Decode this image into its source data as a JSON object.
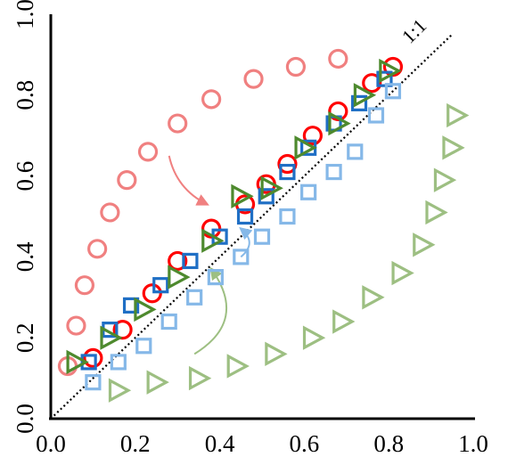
{
  "chart_data": {
    "type": "scatter",
    "title": "",
    "xlabel": "",
    "ylabel": "",
    "xlim": [
      0,
      1.0
    ],
    "ylim": [
      0,
      1.0
    ],
    "xticks": [
      "0.0",
      "0.2",
      "0.4",
      "0.6",
      "0.8",
      "1.0"
    ],
    "yticks": [
      "0.0",
      "0.2",
      "0.4",
      "0.6",
      "0.8",
      "1.0"
    ],
    "reference_line": {
      "label": "1:1",
      "style": "dotted",
      "color": "#000000"
    },
    "grid": false,
    "legend": "none",
    "series": [
      {
        "marker": "circle",
        "color": "#f08080",
        "filled": false,
        "points": [
          [
            0.04,
            0.13
          ],
          [
            0.06,
            0.23
          ],
          [
            0.08,
            0.33
          ],
          [
            0.11,
            0.42
          ],
          [
            0.14,
            0.51
          ],
          [
            0.18,
            0.59
          ],
          [
            0.23,
            0.66
          ],
          [
            0.3,
            0.73
          ],
          [
            0.38,
            0.79
          ],
          [
            0.48,
            0.84
          ],
          [
            0.58,
            0.87
          ],
          [
            0.68,
            0.89
          ]
        ]
      },
      {
        "marker": "circle",
        "color": "#ff0000",
        "filled": false,
        "points": [
          [
            0.1,
            0.15
          ],
          [
            0.17,
            0.22
          ],
          [
            0.24,
            0.31
          ],
          [
            0.3,
            0.39
          ],
          [
            0.38,
            0.47
          ],
          [
            0.46,
            0.53
          ],
          [
            0.51,
            0.58
          ],
          [
            0.56,
            0.63
          ],
          [
            0.62,
            0.7
          ],
          [
            0.68,
            0.76
          ],
          [
            0.76,
            0.83
          ],
          [
            0.81,
            0.87
          ]
        ]
      },
      {
        "marker": "square",
        "color": "#1f6fc5",
        "filled": false,
        "points": [
          [
            0.09,
            0.14
          ],
          [
            0.14,
            0.22
          ],
          [
            0.19,
            0.28
          ],
          [
            0.26,
            0.33
          ],
          [
            0.33,
            0.39
          ],
          [
            0.4,
            0.45
          ],
          [
            0.46,
            0.5
          ],
          [
            0.51,
            0.55
          ],
          [
            0.56,
            0.61
          ],
          [
            0.61,
            0.67
          ],
          [
            0.67,
            0.73
          ],
          [
            0.73,
            0.78
          ],
          [
            0.79,
            0.84
          ]
        ]
      },
      {
        "marker": "square",
        "color": "#85b8e8",
        "filled": false,
        "points": [
          [
            0.1,
            0.09
          ],
          [
            0.16,
            0.14
          ],
          [
            0.22,
            0.18
          ],
          [
            0.28,
            0.24
          ],
          [
            0.34,
            0.3
          ],
          [
            0.39,
            0.35
          ],
          [
            0.45,
            0.4
          ],
          [
            0.5,
            0.45
          ],
          [
            0.56,
            0.5
          ],
          [
            0.61,
            0.56
          ],
          [
            0.67,
            0.61
          ],
          [
            0.72,
            0.66
          ],
          [
            0.77,
            0.75
          ],
          [
            0.81,
            0.81
          ]
        ]
      },
      {
        "marker": "triangle",
        "color": "#4e8a2e",
        "filled": false,
        "points": [
          [
            0.06,
            0.14
          ],
          [
            0.14,
            0.2
          ],
          [
            0.22,
            0.27
          ],
          [
            0.3,
            0.35
          ],
          [
            0.38,
            0.44
          ],
          [
            0.45,
            0.55
          ],
          [
            0.52,
            0.57
          ],
          [
            0.6,
            0.67
          ],
          [
            0.68,
            0.73
          ],
          [
            0.74,
            0.8
          ],
          [
            0.8,
            0.86
          ]
        ]
      },
      {
        "marker": "triangle",
        "color": "#9dbf82",
        "filled": false,
        "points": [
          [
            0.16,
            0.07
          ],
          [
            0.25,
            0.09
          ],
          [
            0.35,
            0.1
          ],
          [
            0.44,
            0.13
          ],
          [
            0.53,
            0.16
          ],
          [
            0.62,
            0.2
          ],
          [
            0.69,
            0.24
          ],
          [
            0.76,
            0.3
          ],
          [
            0.83,
            0.36
          ],
          [
            0.88,
            0.43
          ],
          [
            0.91,
            0.51
          ],
          [
            0.93,
            0.59
          ],
          [
            0.95,
            0.67
          ],
          [
            0.96,
            0.75
          ]
        ]
      }
    ],
    "annotations": [
      {
        "type": "arrow",
        "color": "#f08080",
        "from": [
          0.28,
          0.65
        ],
        "to": [
          0.37,
          0.53
        ],
        "curve": 0.035
      },
      {
        "type": "arrow",
        "color": "#85b8e8",
        "from": [
          0.45,
          0.4
        ],
        "to": [
          0.45,
          0.47
        ],
        "curve": 0.04
      },
      {
        "type": "arrow",
        "color": "#9dbf82",
        "from": [
          0.34,
          0.16
        ],
        "to": [
          0.38,
          0.37
        ],
        "curve": 0.11
      }
    ]
  }
}
